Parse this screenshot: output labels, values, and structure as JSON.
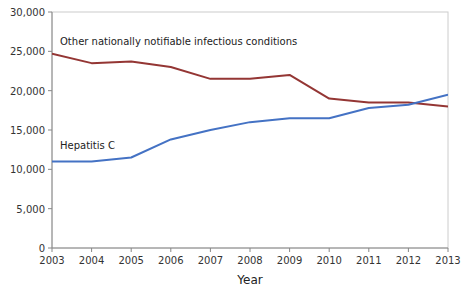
{
  "chart_data": {
    "type": "line",
    "x_label": "Year",
    "x": [
      2003,
      2004,
      2005,
      2006,
      2007,
      2008,
      2009,
      2010,
      2011,
      2012,
      2013
    ],
    "xlim": [
      2003,
      2013
    ],
    "xticks": [
      2003,
      2004,
      2005,
      2006,
      2007,
      2008,
      2009,
      2010,
      2011,
      2012,
      2013
    ],
    "ylim": [
      0,
      30000
    ],
    "yticks": [
      0,
      {
        "value": 5000,
        "label": "5,000"
      },
      {
        "value": 10000,
        "label": "10,000"
      },
      {
        "value": 15000,
        "label": "15,000"
      },
      {
        "value": 20000,
        "label": "20,000"
      },
      {
        "value": 25000,
        "label": "25,000"
      },
      {
        "value": 30000,
        "label": "30,000"
      }
    ],
    "grid": false,
    "series": [
      {
        "name": "Other nationally notifiable infectious conditions",
        "color": "#943634",
        "values": [
          24700,
          23500,
          23700,
          23000,
          21500,
          21500,
          22000,
          19000,
          18500,
          18500,
          18000
        ]
      },
      {
        "name": "Hepatitis C",
        "color": "#4472c4",
        "values": [
          11000,
          11000,
          11500,
          13800,
          15000,
          16000,
          16500,
          16500,
          17800,
          18200,
          19500
        ]
      }
    ]
  }
}
